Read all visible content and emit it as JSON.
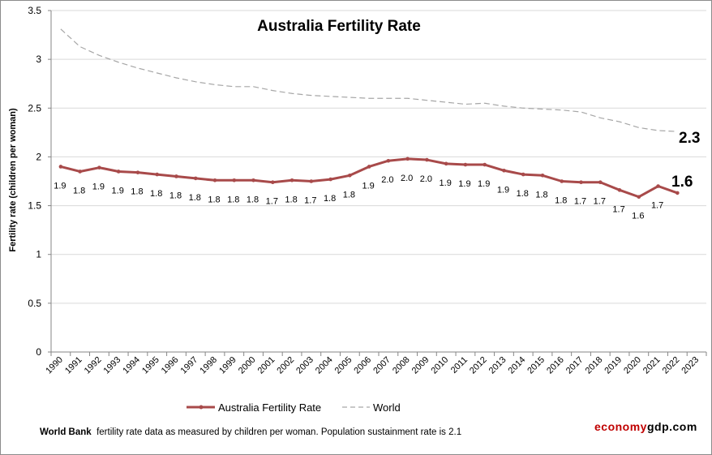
{
  "chart_data": {
    "type": "line",
    "title": "Australia Fertility Rate",
    "xlabel": "",
    "ylabel": "Fertility rate (children per woman)",
    "ylim": [
      0,
      3.5
    ],
    "yticks": [
      "0",
      "0.5",
      "1",
      "1.5",
      "2",
      "2.5",
      "3",
      "3.5"
    ],
    "ytick_values": [
      0,
      0.5,
      1,
      1.5,
      2,
      2.5,
      3,
      3.5
    ],
    "grid": "horizontal",
    "legend_position": "bottom",
    "categories": [
      "1990",
      "1991",
      "1992",
      "1993",
      "1994",
      "1995",
      "1996",
      "1997",
      "1998",
      "1999",
      "2000",
      "2001",
      "2002",
      "2003",
      "2004",
      "2005",
      "2006",
      "2007",
      "2008",
      "2009",
      "2010",
      "2011",
      "2012",
      "2013",
      "2014",
      "2015",
      "2016",
      "2017",
      "2018",
      "2019",
      "2020",
      "2021",
      "2022",
      "2023"
    ],
    "series": [
      {
        "name": "Australia Fertility Rate",
        "color": "#a84a4a",
        "style": "solid-with-markers",
        "values": [
          1.9,
          1.85,
          1.89,
          1.85,
          1.84,
          1.82,
          1.8,
          1.78,
          1.76,
          1.76,
          1.76,
          1.74,
          1.76,
          1.75,
          1.77,
          1.81,
          1.9,
          1.96,
          1.98,
          1.97,
          1.93,
          1.92,
          1.92,
          1.86,
          1.82,
          1.81,
          1.75,
          1.74,
          1.74,
          1.66,
          1.59,
          1.7,
          1.63,
          null
        ],
        "data_labels": [
          "1.9",
          "1.8",
          "1.9",
          "1.9",
          "1.8",
          "1.8",
          "1.8",
          "1.8",
          "1.8",
          "1.8",
          "1.8",
          "1.7",
          "1.8",
          "1.7",
          "1.8",
          "1.8",
          "1.9",
          "2.0",
          "2.0",
          "2.0",
          "1.9",
          "1.9",
          "1.9",
          "1.9",
          "1.8",
          "1.8",
          "1.8",
          "1.7",
          "1.7",
          "1.7",
          "1.6",
          "1.7",
          "",
          ""
        ],
        "end_annotation": "1.6"
      },
      {
        "name": "World",
        "color": "#a6a6a6",
        "style": "dashed",
        "values": [
          3.31,
          3.13,
          3.04,
          2.97,
          2.91,
          2.86,
          2.81,
          2.77,
          2.74,
          2.72,
          2.72,
          2.68,
          2.65,
          2.63,
          2.62,
          2.61,
          2.6,
          2.6,
          2.6,
          2.58,
          2.56,
          2.54,
          2.55,
          2.52,
          2.5,
          2.49,
          2.48,
          2.46,
          2.4,
          2.36,
          2.3,
          2.27,
          2.26,
          null
        ],
        "end_annotation": "2.3"
      }
    ],
    "footer_note": {
      "source": "World Bank",
      "text": "fertility rate data as measured by children per woman.  Population sustainment rate is 2.1"
    },
    "brand": {
      "part1": "economy",
      "part2": "gdp.com"
    }
  }
}
